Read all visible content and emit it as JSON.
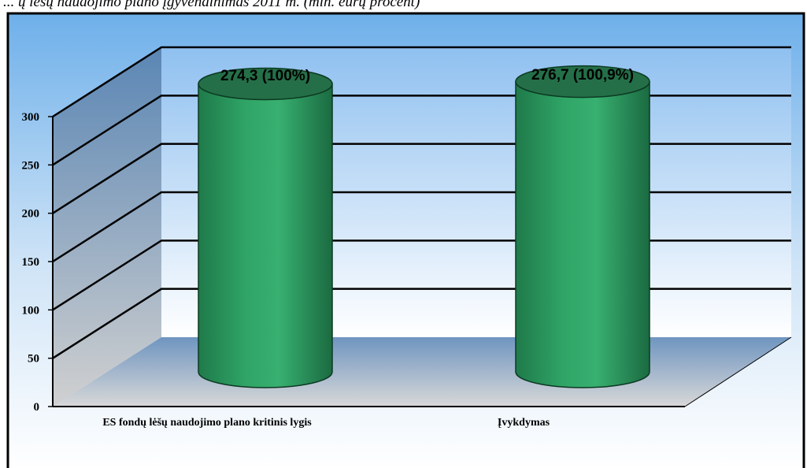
{
  "caption": "... ų lėšų naudojimo plano įgyvendinimas 2011 m. (mln. eurų procent)",
  "colors": {
    "bar": "#2e9c62",
    "bar_dark": "#1d6f44",
    "bar_top": "#236f47",
    "back_wall_top": "#8fc0f0",
    "back_wall_bottom": "#ffffff",
    "side_wall_top": "#5a86b4",
    "side_wall_bottom": "#cfcfcf",
    "floor_top": "#6f95c0",
    "floor_bottom": "#d6d6d6"
  },
  "chart_data": {
    "type": "bar",
    "style": "3d-cylinder",
    "categories": [
      "ES fondų lėšų naudojimo plano kritinis lygis",
      "Įvykdymas"
    ],
    "values": [
      274.3,
      276.7
    ],
    "data_labels": [
      "274,3 (100%)",
      "276,7 (100,9%)"
    ],
    "y_ticks": [
      "0",
      "50",
      "100",
      "150",
      "200",
      "250",
      "300"
    ],
    "ylim": [
      0,
      300
    ],
    "grid": true,
    "legend": false
  }
}
